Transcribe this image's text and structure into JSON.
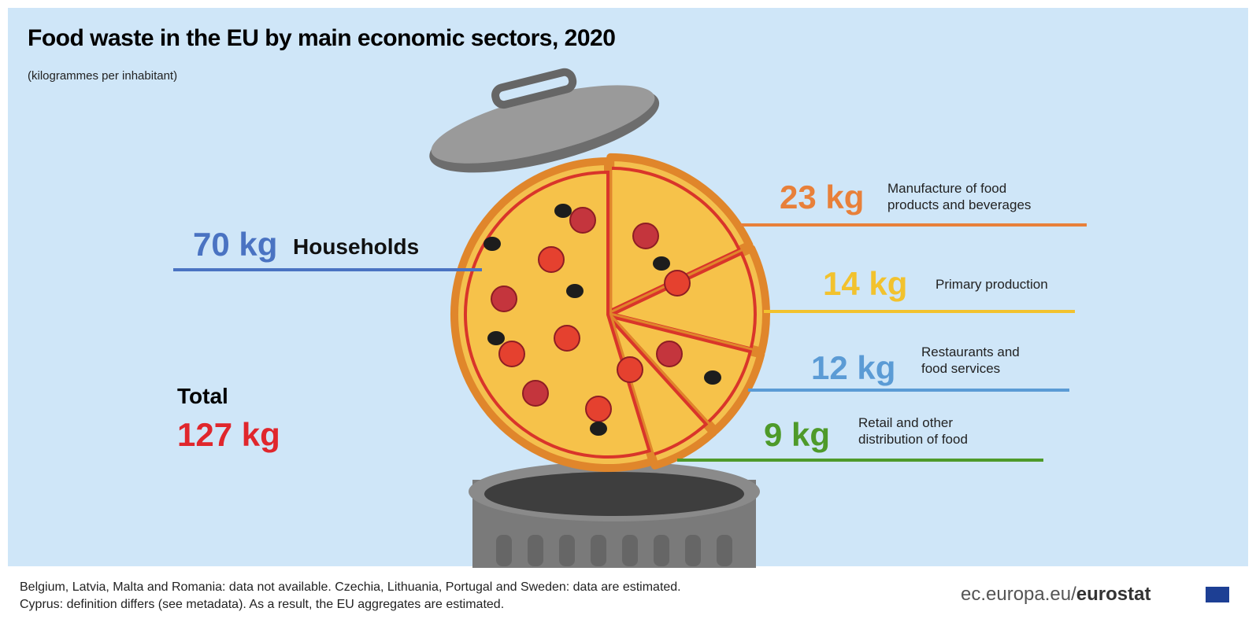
{
  "chart_data": {
    "type": "pie",
    "title": "Food waste in the EU by main economic sectors, 2020",
    "subtitle": "(kilogrammes per inhabitant)",
    "categories": [
      "Households",
      "Manufacture of food products and beverages",
      "Primary production",
      "Restaurants and food services",
      "Retail and other distribution of food"
    ],
    "values": [
      70,
      23,
      14,
      12,
      9
    ],
    "value_labels": [
      "70 kg",
      "23 kg",
      "14 kg",
      "12 kg",
      "9 kg"
    ],
    "colors": [
      "#4a73c2",
      "#e8803a",
      "#f2c22e",
      "#5b9bd5",
      "#4e9a2a"
    ],
    "total": {
      "label": "Total",
      "value": 127,
      "value_label": "127 kg",
      "color": "#e0262c"
    },
    "footnote": [
      "Belgium, Latvia, Malta and Romania: data not available. Czechia, Lithuania, Portugal and Sweden: data are estimated.",
      "Cyprus: definition differs (see metadata). As a result, the EU aggregates are estimated."
    ],
    "source": {
      "site": "ec.europa.eu/",
      "name": "eurostat"
    }
  }
}
